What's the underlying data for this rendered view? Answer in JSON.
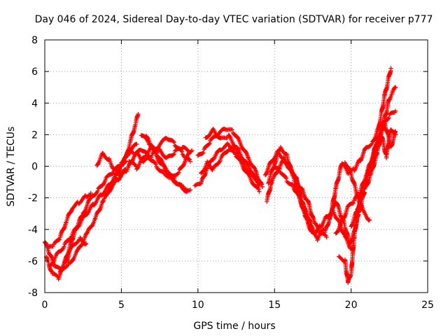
{
  "chart_data": {
    "type": "scatter",
    "title": "Day 046 of 2024, Sidereal Day-to-day VTEC variation (SDTVAR) for receiver p777",
    "xlabel": "GPS time / hours",
    "ylabel": "SDTVAR / TECUs",
    "xlim": [
      0,
      25
    ],
    "ylim": [
      -8,
      8
    ],
    "xticks": [
      0,
      5,
      10,
      15,
      20,
      25
    ],
    "yticks": [
      -8,
      -6,
      -4,
      -2,
      0,
      2,
      4,
      6,
      8
    ],
    "grid": true,
    "marker": "+",
    "series": [
      {
        "name": "satellite tracks (SDTVAR)",
        "color": "#ff0000",
        "tracks": [
          [
            [
              0.0,
              -4.8
            ],
            [
              0.3,
              -5.5
            ],
            [
              0.6,
              -6.2
            ],
            [
              1.0,
              -6.6
            ],
            [
              1.4,
              -6.0
            ],
            [
              1.8,
              -5.0
            ],
            [
              2.3,
              -4.6
            ],
            [
              2.7,
              -4.9
            ]
          ],
          [
            [
              0.1,
              -5.8
            ],
            [
              0.5,
              -6.8
            ],
            [
              0.9,
              -7.1
            ],
            [
              1.2,
              -6.4
            ],
            [
              1.5,
              -5.5
            ],
            [
              2.0,
              -4.0
            ],
            [
              2.5,
              -3.0
            ],
            [
              3.0,
              -2.0
            ],
            [
              3.5,
              -1.5
            ],
            [
              4.0,
              -0.8
            ],
            [
              4.5,
              -0.3
            ],
            [
              5.0,
              0.1
            ],
            [
              5.5,
              0.9
            ],
            [
              6.0,
              1.4
            ]
          ],
          [
            [
              0.2,
              -5.2
            ],
            [
              0.6,
              -5.0
            ],
            [
              1.0,
              -4.5
            ],
            [
              1.4,
              -3.5
            ],
            [
              1.8,
              -2.6
            ],
            [
              2.2,
              -2.3
            ],
            [
              2.7,
              -1.9
            ],
            [
              3.0,
              -1.7
            ]
          ],
          [
            [
              0.3,
              -6.4
            ],
            [
              0.8,
              -5.6
            ],
            [
              1.3,
              -5.0
            ],
            [
              1.8,
              -4.3
            ],
            [
              2.3,
              -3.6
            ],
            [
              2.8,
              -2.9
            ],
            [
              3.2,
              -2.4
            ],
            [
              3.7,
              -1.8
            ],
            [
              4.2,
              -1.2
            ],
            [
              4.6,
              -0.6
            ],
            [
              5.0,
              -0.1
            ],
            [
              5.3,
              0.5
            ],
            [
              5.6,
              1.6
            ],
            [
              5.9,
              2.6
            ],
            [
              6.1,
              3.3
            ]
          ],
          [
            [
              1.0,
              -6.5
            ],
            [
              1.6,
              -6.2
            ],
            [
              2.2,
              -5.3
            ],
            [
              2.8,
              -4.2
            ],
            [
              3.3,
              -3.3
            ],
            [
              3.8,
              -2.2
            ],
            [
              4.3,
              -1.4
            ],
            [
              4.8,
              -0.8
            ],
            [
              5.3,
              -0.2
            ]
          ],
          [
            [
              3.4,
              0.1
            ],
            [
              3.8,
              0.8
            ],
            [
              4.2,
              0.4
            ],
            [
              4.6,
              -0.3
            ],
            [
              5.0,
              -0.6
            ],
            [
              5.4,
              -0.2
            ],
            [
              5.8,
              0.6
            ],
            [
              6.3,
              1.1
            ],
            [
              6.8,
              0.6
            ],
            [
              7.3,
              0.0
            ],
            [
              7.8,
              -0.5
            ],
            [
              8.3,
              -0.7
            ],
            [
              8.8,
              -0.3
            ],
            [
              9.3,
              0.6
            ],
            [
              9.6,
              1.0
            ]
          ],
          [
            [
              4.0,
              -1.8
            ],
            [
              4.5,
              -0.9
            ],
            [
              5.0,
              0.2
            ],
            [
              5.5,
              1.0
            ],
            [
              6.0,
              0.8
            ],
            [
              6.5,
              0.3
            ],
            [
              7.0,
              0.7
            ],
            [
              7.5,
              1.4
            ],
            [
              8.0,
              1.8
            ],
            [
              8.5,
              1.4
            ],
            [
              9.0,
              0.8
            ],
            [
              9.5,
              0.3
            ]
          ],
          [
            [
              5.5,
              0.4
            ],
            [
              6.0,
              -0.1
            ],
            [
              6.5,
              0.6
            ],
            [
              7.0,
              1.2
            ],
            [
              7.5,
              1.0
            ],
            [
              8.0,
              0.5
            ],
            [
              8.5,
              0.9
            ],
            [
              9.0,
              1.2
            ],
            [
              9.4,
              0.9
            ]
          ],
          [
            [
              6.3,
              2.0
            ],
            [
              6.8,
              1.5
            ],
            [
              7.3,
              0.8
            ],
            [
              7.8,
              0.0
            ],
            [
              8.3,
              -0.8
            ],
            [
              8.8,
              -1.2
            ],
            [
              9.3,
              -1.6
            ]
          ],
          [
            [
              6.6,
              1.9
            ],
            [
              7.0,
              1.2
            ],
            [
              7.5,
              0.3
            ],
            [
              8.0,
              -0.3
            ],
            [
              8.5,
              -0.9
            ],
            [
              9.0,
              -1.3
            ],
            [
              9.5,
              -1.5
            ]
          ],
          [
            [
              9.8,
              -1.3
            ],
            [
              10.2,
              -1.1
            ],
            [
              10.6,
              -0.1
            ],
            [
              11.0,
              0.5
            ],
            [
              11.5,
              1.1
            ],
            [
              12.0,
              1.4
            ],
            [
              12.5,
              1.0
            ],
            [
              13.0,
              0.1
            ],
            [
              13.5,
              -0.6
            ],
            [
              14.0,
              -1.0
            ]
          ],
          [
            [
              10.0,
              0.6
            ],
            [
              10.4,
              1.0
            ],
            [
              10.8,
              1.6
            ],
            [
              11.3,
              2.0
            ],
            [
              11.8,
              2.4
            ],
            [
              12.3,
              2.2
            ],
            [
              12.8,
              1.4
            ],
            [
              13.3,
              0.5
            ],
            [
              13.8,
              -0.4
            ],
            [
              14.2,
              -1.3
            ]
          ],
          [
            [
              10.2,
              -0.5
            ],
            [
              10.6,
              0.2
            ],
            [
              11.0,
              -0.2
            ],
            [
              11.5,
              0.5
            ],
            [
              12.0,
              1.1
            ],
            [
              12.5,
              0.7
            ],
            [
              13.0,
              -0.1
            ],
            [
              13.5,
              -0.9
            ],
            [
              14.0,
              -1.6
            ]
          ],
          [
            [
              10.5,
              1.8
            ],
            [
              11.0,
              2.3
            ],
            [
              11.5,
              1.7
            ],
            [
              12.0,
              1.9
            ],
            [
              12.5,
              1.2
            ],
            [
              13.0,
              0.4
            ],
            [
              13.5,
              -0.3
            ],
            [
              14.0,
              -1.2
            ]
          ],
          [
            [
              14.4,
              -0.5
            ],
            [
              14.8,
              0.3
            ],
            [
              15.2,
              0.9
            ],
            [
              15.6,
              0.5
            ],
            [
              16.0,
              -0.2
            ],
            [
              16.4,
              -0.7
            ],
            [
              16.8,
              -2.2
            ],
            [
              17.2,
              -3.5
            ],
            [
              17.6,
              -4.2
            ],
            [
              18.0,
              -3.8
            ],
            [
              18.4,
              -3.2
            ],
            [
              18.8,
              -2.8
            ],
            [
              19.2,
              -3.5
            ],
            [
              19.6,
              -4.5
            ],
            [
              20.0,
              -5.2
            ]
          ],
          [
            [
              14.6,
              -1.0
            ],
            [
              15.0,
              0.2
            ],
            [
              15.4,
              1.2
            ],
            [
              15.8,
              0.7
            ],
            [
              16.2,
              -0.6
            ],
            [
              16.6,
              -1.8
            ],
            [
              17.0,
              -3.2
            ],
            [
              17.4,
              -4.1
            ],
            [
              17.8,
              -4.6
            ],
            [
              18.2,
              -4.0
            ]
          ],
          [
            [
              15.0,
              0.0
            ],
            [
              15.4,
              -0.3
            ],
            [
              15.8,
              -0.9
            ],
            [
              16.2,
              -1.2
            ],
            [
              16.6,
              -2.0
            ],
            [
              17.0,
              -2.8
            ],
            [
              17.4,
              -3.6
            ]
          ],
          [
            [
              14.5,
              -2.2
            ],
            [
              14.8,
              -1.0
            ],
            [
              15.2,
              -0.3
            ],
            [
              15.6,
              0.4
            ],
            [
              16.0,
              0.0
            ],
            [
              16.4,
              -0.9
            ],
            [
              16.8,
              -1.5
            ],
            [
              17.2,
              -2.3
            ],
            [
              17.6,
              -3.6
            ],
            [
              18.0,
              -4.2
            ],
            [
              18.4,
              -4.5
            ]
          ],
          [
            [
              18.3,
              -4.2
            ],
            [
              18.7,
              -3.0
            ],
            [
              19.0,
              -2.2
            ],
            [
              19.3,
              -3.0
            ],
            [
              19.6,
              -3.8
            ],
            [
              19.9,
              -4.9
            ],
            [
              20.2,
              -4.2
            ],
            [
              20.5,
              -3.0
            ],
            [
              20.9,
              -1.5
            ],
            [
              21.3,
              -0.5
            ],
            [
              21.7,
              0.8
            ],
            [
              22.1,
              2.6
            ],
            [
              22.5,
              4.3
            ],
            [
              22.9,
              5.0
            ]
          ],
          [
            [
              18.6,
              -3.4
            ],
            [
              19.0,
              -1.4
            ],
            [
              19.4,
              0.2
            ],
            [
              19.8,
              -0.4
            ],
            [
              20.2,
              -0.2
            ],
            [
              20.6,
              0.4
            ],
            [
              21.0,
              1.2
            ],
            [
              21.4,
              1.5
            ],
            [
              21.8,
              2.4
            ],
            [
              22.2,
              4.5
            ],
            [
              22.6,
              6.2
            ]
          ],
          [
            [
              19.2,
              -5.8
            ],
            [
              19.6,
              -6.0
            ],
            [
              19.8,
              -7.4
            ],
            [
              20.0,
              -6.8
            ],
            [
              20.2,
              -4.5
            ],
            [
              20.5,
              -2.5
            ],
            [
              20.9,
              -1.0
            ],
            [
              21.3,
              0.2
            ],
            [
              21.7,
              1.7
            ],
            [
              22.1,
              2.7
            ],
            [
              22.5,
              3.2
            ],
            [
              22.9,
              3.5
            ]
          ],
          [
            [
              19.0,
              -4.3
            ],
            [
              19.4,
              -3.5
            ],
            [
              19.8,
              -2.6
            ],
            [
              20.2,
              -2.2
            ],
            [
              20.6,
              -1.6
            ],
            [
              21.0,
              -0.5
            ],
            [
              21.4,
              0.6
            ],
            [
              21.8,
              1.8
            ],
            [
              22.2,
              2.7
            ],
            [
              22.6,
              1.2
            ],
            [
              22.9,
              2.2
            ]
          ],
          [
            [
              20.0,
              -3.8
            ],
            [
              20.4,
              -2.8
            ],
            [
              20.8,
              -1.5
            ],
            [
              21.2,
              -0.2
            ],
            [
              21.6,
              1.1
            ],
            [
              22.0,
              1.9
            ],
            [
              22.3,
              0.6
            ],
            [
              22.6,
              2.4
            ],
            [
              22.9,
              2.0
            ]
          ],
          [
            [
              19.6,
              0.3
            ],
            [
              20.0,
              -0.5
            ],
            [
              20.4,
              -1.8
            ],
            [
              20.8,
              -2.9
            ],
            [
              21.2,
              -3.4
            ]
          ]
        ]
      }
    ]
  }
}
